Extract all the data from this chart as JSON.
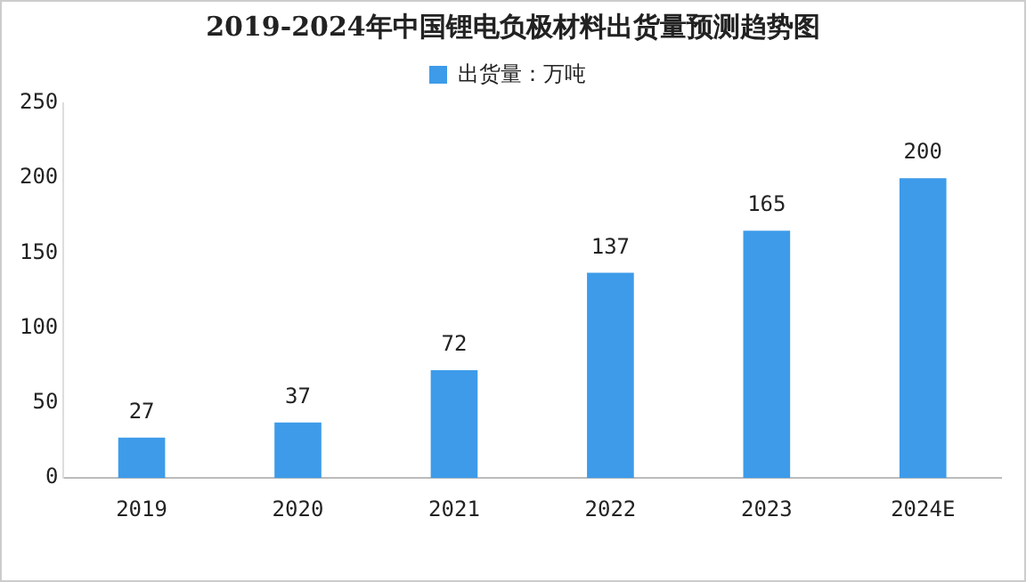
{
  "chart_data": {
    "type": "bar",
    "title": "2019-2024年中国锂电负极材料出货量预测趋势图",
    "categories": [
      "2019",
      "2020",
      "2021",
      "2022",
      "2023",
      "2024E"
    ],
    "series": [
      {
        "name": "出货量：万吨",
        "color": "#3d9be9",
        "values": [
          27,
          37,
          72,
          137,
          165,
          200
        ]
      }
    ],
    "ylim": [
      0,
      250
    ],
    "yticks": [
      0,
      50,
      100,
      150,
      200,
      250
    ],
    "grid": false,
    "legend": "top",
    "data_labels": true
  }
}
